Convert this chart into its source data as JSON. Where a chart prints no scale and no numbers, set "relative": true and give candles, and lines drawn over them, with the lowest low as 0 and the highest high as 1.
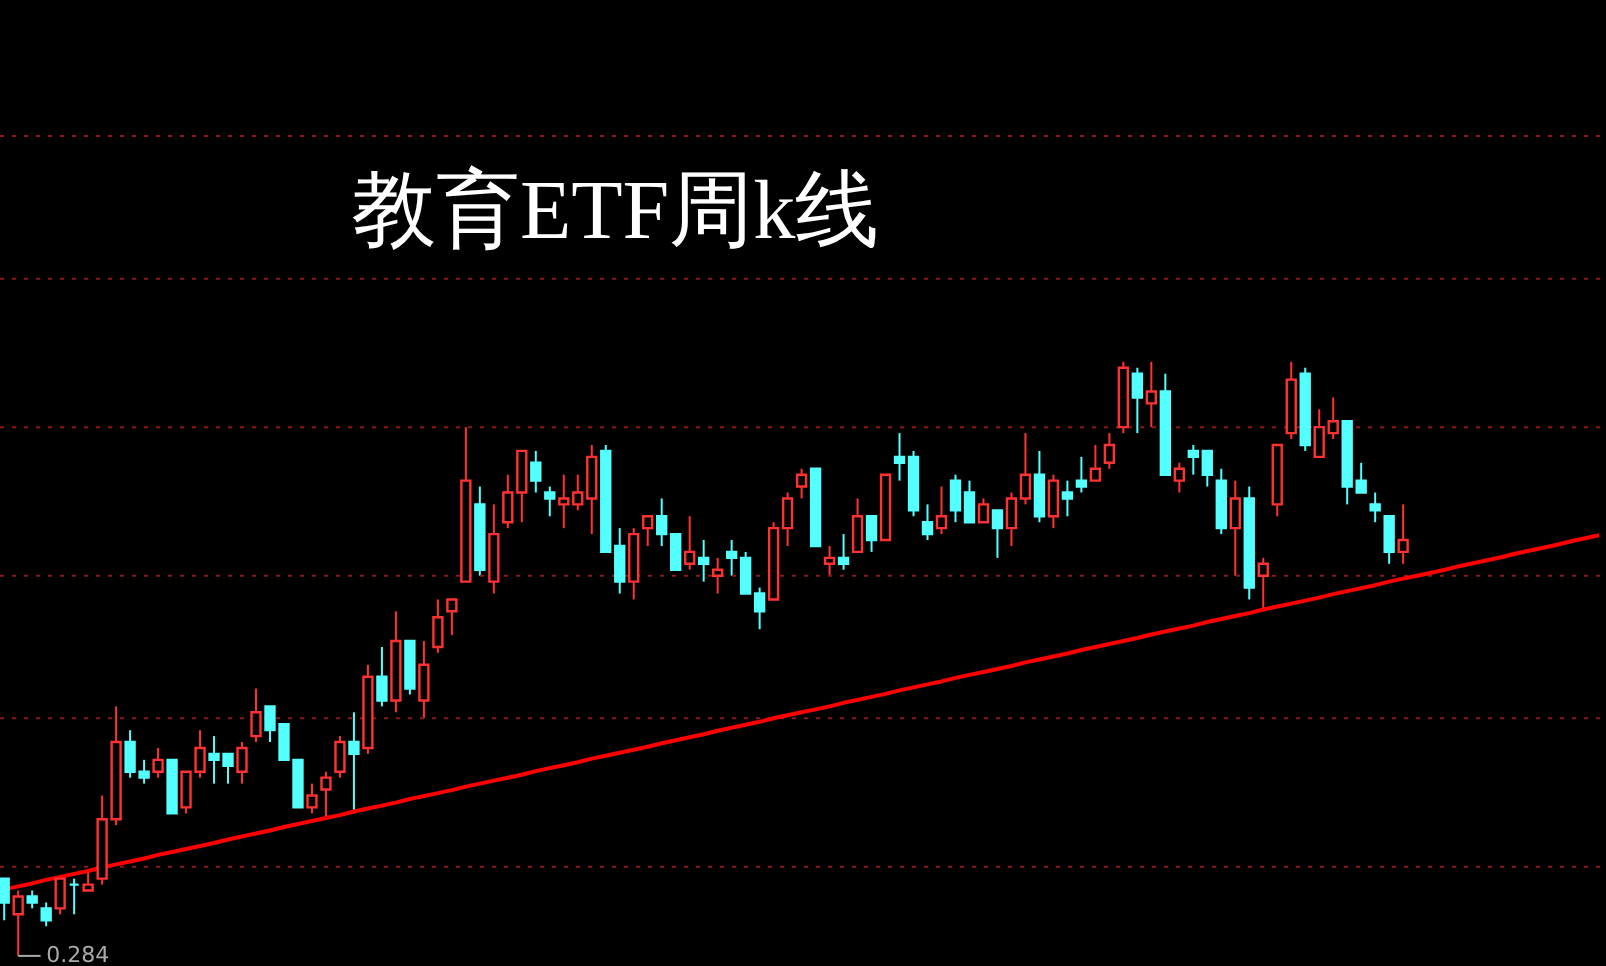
{
  "chart_data": {
    "type": "candlestick",
    "title": "教育ETF周k线",
    "relative": true,
    "ref_lines": [
      {
        "axis": "y",
        "value": 1.38,
        "color": "#8b1a1a",
        "line_style": "dotted"
      },
      {
        "axis": "y",
        "value": 1.14,
        "color": "#8b1a1a",
        "line_style": "dotted"
      },
      {
        "axis": "y",
        "value": 0.89,
        "color": "#8b1a1a",
        "line_style": "dotted"
      },
      {
        "axis": "y",
        "value": 0.64,
        "color": "#8b1a1a",
        "line_style": "dotted"
      },
      {
        "axis": "y",
        "value": 0.4,
        "color": "#8b1a1a",
        "line_style": "dotted"
      },
      {
        "axis": "y",
        "value": 0.15,
        "color": "#8b1a1a",
        "line_style": "dotted"
      }
    ],
    "colors": [
      "#54ffff",
      "#ff3232",
      "#54ffff",
      "#54ffff",
      "#ff3232",
      "#54ffff",
      "#ff3232",
      "#ff3232",
      "#ff3232",
      "#54ffff",
      "#54ffff",
      "#ff3232",
      "#54ffff",
      "#ff3232",
      "#ff3232",
      "#54ffff",
      "#54ffff",
      "#ff3232",
      "#ff3232",
      "#54ffff",
      "#54ffff",
      "#54ffff",
      "#ff3232",
      "#ff3232",
      "#ff3232",
      "#54ffff",
      "#ff3232",
      "#54ffff",
      "#ff3232",
      "#54ffff",
      "#ff3232",
      "#ff3232",
      "#ff3232",
      "#ff3232",
      "#54ffff",
      "#ff3232",
      "#ff3232",
      "#ff3232",
      "#54ffff",
      "#54ffff",
      "#ff3232",
      "#ff3232",
      "#ff3232",
      "#54ffff",
      "#54ffff",
      "#ff3232",
      "#ff3232",
      "#54ffff",
      "#54ffff",
      "#ff3232",
      "#54ffff",
      "#ff3232",
      "#54ffff",
      "#54ffff",
      "#54ffff",
      "#ff3232",
      "#ff3232",
      "#ff3232",
      "#54ffff",
      "#ff3232",
      "#54ffff",
      "#ff3232",
      "#54ffff",
      "#ff3232",
      "#54ffff",
      "#54ffff",
      "#54ffff",
      "#ff3232",
      "#54ffff",
      "#54ffff",
      "#ff3232",
      "#54ffff",
      "#ff3232",
      "#ff3232",
      "#54ffff",
      "#ff3232",
      "#54ffff",
      "#54ffff",
      "#ff3232",
      "#ff3232",
      "#ff3232",
      "#54ffff",
      "#ff3232",
      "#54ffff",
      "#ff3232",
      "#54ffff",
      "#54ffff",
      "#54ffff",
      "#ff3232",
      "#54ffff",
      "#ff3232",
      "#ff3232",
      "#ff3232",
      "#54ffff",
      "#ff3232",
      "#ff3232",
      "#54ffff",
      "#54ffff",
      "#54ffff",
      "#54ffff",
      "#ff3232",
      null,
      null,
      null,
      null,
      null,
      null,
      null,
      null,
      null,
      null,
      null,
      null,
      null,
      null
    ],
    "annotations": [
      "0.284"
    ],
    "categories": [
      null,
      null,
      null,
      null,
      null,
      null,
      null,
      null,
      null,
      null,
      null,
      null,
      null,
      null,
      null,
      null,
      null,
      null,
      null,
      null,
      null,
      null,
      null,
      null,
      null,
      null,
      null,
      null,
      null,
      null,
      null,
      null,
      null,
      null,
      null,
      null,
      null,
      null,
      null,
      null,
      null,
      null,
      null,
      null,
      null,
      null,
      null,
      null,
      null,
      null,
      null,
      null,
      null,
      null,
      null,
      null,
      null,
      null,
      null,
      null,
      null,
      null,
      null,
      null,
      null,
      null,
      null,
      null,
      null,
      null,
      null,
      null,
      null,
      null,
      null,
      null,
      null,
      null,
      null,
      null,
      null,
      null,
      null,
      null,
      null,
      null,
      null,
      null,
      null,
      null,
      null,
      null,
      null,
      null,
      null,
      null,
      null,
      null,
      null,
      null,
      null,
      null,
      null,
      null,
      null,
      null,
      null,
      null,
      null,
      null,
      null,
      null,
      null,
      null,
      null
    ],
    "ohlc": [
      [
        0.13,
        0.13,
        0.06,
        0.09
      ],
      [
        0.07,
        0.11,
        0,
        0.1
      ],
      [
        0.1,
        0.11,
        0.08,
        0.09
      ],
      [
        0.08,
        0.09,
        0.05,
        0.06
      ],
      [
        0.08,
        0.13,
        0.07,
        0.13
      ],
      [
        0.12,
        0.13,
        0.07,
        0.12
      ],
      [
        0.11,
        0.14,
        0.11,
        0.12
      ],
      [
        0.13,
        0.27,
        0.12,
        0.23
      ],
      [
        0.23,
        0.42,
        0.22,
        0.36
      ],
      [
        0.36,
        0.38,
        0.3,
        0.31
      ],
      [
        0.31,
        0.33,
        0.29,
        0.3
      ],
      [
        0.31,
        0.35,
        0.3,
        0.33
      ],
      [
        0.33,
        0.33,
        0.24,
        0.24
      ],
      [
        0.25,
        0.31,
        0.24,
        0.31
      ],
      [
        0.31,
        0.38,
        0.3,
        0.35
      ],
      [
        0.34,
        0.37,
        0.29,
        0.33
      ],
      [
        0.34,
        0.34,
        0.29,
        0.32
      ],
      [
        0.31,
        0.36,
        0.29,
        0.35
      ],
      [
        0.37,
        0.45,
        0.36,
        0.41
      ],
      [
        0.42,
        0.42,
        0.36,
        0.38
      ],
      [
        0.39,
        0.39,
        0.33,
        0.33
      ],
      [
        0.33,
        0.33,
        0.25,
        0.25
      ],
      [
        0.25,
        0.29,
        0.24,
        0.27
      ],
      [
        0.28,
        0.31,
        0.23,
        0.3
      ],
      [
        0.31,
        0.37,
        0.3,
        0.36
      ],
      [
        0.36,
        0.41,
        0.24,
        0.34
      ],
      [
        0.35,
        0.49,
        0.34,
        0.47
      ],
      [
        0.47,
        0.52,
        0.42,
        0.43
      ],
      [
        0.43,
        0.58,
        0.41,
        0.53
      ],
      [
        0.53,
        0.53,
        0.44,
        0.45
      ],
      [
        0.43,
        0.53,
        0.4,
        0.49
      ],
      [
        0.52,
        0.6,
        0.51,
        0.57
      ],
      [
        0.58,
        0.6,
        0.54,
        0.6
      ],
      [
        0.63,
        0.89,
        0.63,
        0.8
      ],
      [
        0.76,
        0.79,
        0.64,
        0.65
      ],
      [
        0.63,
        0.76,
        0.61,
        0.71
      ],
      [
        0.73,
        0.81,
        0.72,
        0.78
      ],
      [
        0.78,
        0.85,
        0.73,
        0.85
      ],
      [
        0.83,
        0.85,
        0.78,
        0.8
      ],
      [
        0.78,
        0.79,
        0.74,
        0.77
      ],
      [
        0.76,
        0.81,
        0.72,
        0.77
      ],
      [
        0.76,
        0.81,
        0.75,
        0.78
      ],
      [
        0.77,
        0.86,
        0.71,
        0.84
      ],
      [
        0.85,
        0.86,
        0.68,
        0.68
      ],
      [
        0.69,
        0.72,
        0.61,
        0.63
      ],
      [
        0.63,
        0.72,
        0.6,
        0.71
      ],
      [
        0.72,
        0.74,
        0.69,
        0.74
      ],
      [
        0.74,
        0.77,
        0.69,
        0.71
      ],
      [
        0.71,
        0.71,
        0.65,
        0.65
      ],
      [
        0.66,
        0.74,
        0.65,
        0.68
      ],
      [
        0.67,
        0.7,
        0.63,
        0.66
      ],
      [
        0.64,
        0.67,
        0.61,
        0.65
      ],
      [
        0.68,
        0.7,
        0.64,
        0.67
      ],
      [
        0.67,
        0.68,
        0.61,
        0.61
      ],
      [
        0.61,
        0.62,
        0.55,
        0.58
      ],
      [
        0.6,
        0.73,
        0.6,
        0.72
      ],
      [
        0.72,
        0.78,
        0.69,
        0.77
      ],
      [
        0.79,
        0.82,
        0.77,
        0.81
      ],
      [
        0.82,
        0.82,
        0.69,
        0.69
      ],
      [
        0.66,
        0.69,
        0.64,
        0.67
      ],
      [
        0.67,
        0.71,
        0.65,
        0.66
      ],
      [
        0.68,
        0.77,
        0.68,
        0.74
      ],
      [
        0.74,
        0.74,
        0.68,
        0.7
      ],
      [
        0.7,
        0.81,
        0.7,
        0.81
      ],
      [
        0.84,
        0.88,
        0.8,
        0.83
      ],
      [
        0.84,
        0.85,
        0.74,
        0.75
      ],
      [
        0.73,
        0.76,
        0.7,
        0.71
      ],
      [
        0.72,
        0.79,
        0.71,
        0.74
      ],
      [
        0.8,
        0.81,
        0.73,
        0.75
      ],
      [
        0.78,
        0.8,
        0.73,
        0.73
      ],
      [
        0.73,
        0.77,
        0.73,
        0.76
      ],
      [
        0.75,
        0.75,
        0.67,
        0.72
      ],
      [
        0.72,
        0.78,
        0.69,
        0.77
      ],
      [
        0.77,
        0.88,
        0.76,
        0.81
      ],
      [
        0.81,
        0.85,
        0.73,
        0.74
      ],
      [
        0.74,
        0.81,
        0.72,
        0.8
      ],
      [
        0.78,
        0.8,
        0.74,
        0.77
      ],
      [
        0.8,
        0.84,
        0.78,
        0.79
      ],
      [
        0.8,
        0.86,
        0.8,
        0.82
      ],
      [
        0.83,
        0.88,
        0.82,
        0.86
      ],
      [
        0.89,
        1,
        0.88,
        0.99
      ],
      [
        0.98,
        0.99,
        0.88,
        0.94
      ],
      [
        0.93,
        1,
        0.89,
        0.95
      ],
      [
        0.95,
        0.98,
        0.81,
        0.81
      ],
      [
        0.8,
        0.83,
        0.78,
        0.82
      ],
      [
        0.85,
        0.86,
        0.81,
        0.84
      ],
      [
        0.85,
        0.85,
        0.79,
        0.81
      ],
      [
        0.8,
        0.82,
        0.71,
        0.72
      ],
      [
        0.72,
        0.8,
        0.64,
        0.77
      ],
      [
        0.77,
        0.79,
        0.6,
        0.62
      ],
      [
        0.64,
        0.67,
        0.58,
        0.66
      ],
      [
        0.76,
        0.86,
        0.74,
        0.86
      ],
      [
        0.88,
        1,
        0.87,
        0.97
      ],
      [
        0.98,
        0.99,
        0.85,
        0.86
      ],
      [
        0.84,
        0.92,
        0.84,
        0.89
      ],
      [
        0.88,
        0.94,
        0.87,
        0.9
      ],
      [
        0.9,
        0.9,
        0.76,
        0.79
      ],
      [
        0.8,
        0.83,
        0.78,
        0.78
      ],
      [
        0.76,
        0.78,
        0.73,
        0.75
      ],
      [
        0.74,
        0.74,
        0.66,
        0.68
      ],
      [
        0.68,
        0.76,
        0.66,
        0.7
      ],
      null,
      null,
      null,
      null,
      null,
      null,
      null,
      null,
      null,
      null,
      null,
      null,
      null,
      null
    ],
    "series": [
      {
        "type": "line",
        "color": "#ff0000",
        "values": [
          0.112,
          0.117,
          0.122,
          0.128,
          0.133,
          0.138,
          0.143,
          0.149,
          0.154,
          0.159,
          0.164,
          0.17,
          0.175,
          0.18,
          0.185,
          0.19,
          0.196,
          0.201,
          0.206,
          0.211,
          0.217,
          0.222,
          0.227,
          0.232,
          0.237,
          0.243,
          0.248,
          0.253,
          0.258,
          0.264,
          0.269,
          0.274,
          0.279,
          0.285,
          0.29,
          0.295,
          0.3,
          0.305,
          0.311,
          0.316,
          0.321,
          0.326,
          0.332,
          0.337,
          0.342,
          0.347,
          0.352,
          0.358,
          0.363,
          0.368,
          0.373,
          0.379,
          0.384,
          0.389,
          0.394,
          0.4,
          0.405,
          0.41,
          0.415,
          0.42,
          0.426,
          0.431,
          0.436,
          0.441,
          0.447,
          0.452,
          0.457,
          0.462,
          0.468,
          0.473,
          0.478,
          0.483,
          0.488,
          0.494,
          0.499,
          0.504,
          0.509,
          0.515,
          0.52,
          0.525,
          0.53,
          0.535,
          0.541,
          0.546,
          0.551,
          0.556,
          0.562,
          0.567,
          0.572,
          0.577,
          0.583,
          0.588,
          0.593,
          0.598,
          0.603,
          0.609,
          0.614,
          0.619,
          0.624,
          0.63,
          0.635,
          0.64,
          0.645,
          0.65,
          0.656,
          0.661,
          0.666,
          0.671,
          0.677,
          0.682,
          0.687,
          0.692,
          0.698,
          0.703,
          0.708
        ]
      }
    ]
  }
}
